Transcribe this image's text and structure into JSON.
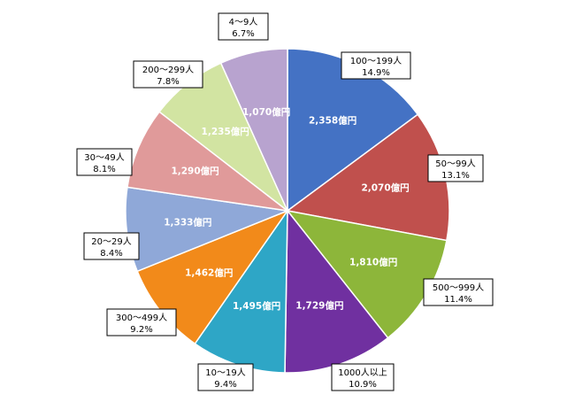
{
  "chart_data": {
    "type": "pie",
    "unit": "億円",
    "slices": [
      {
        "category": "100～199人",
        "value": 2358,
        "value_label": "2,358億円",
        "percent": "14.9%",
        "color": "#4472C4"
      },
      {
        "category": "50～99人",
        "value": 2070,
        "value_label": "2,070億円",
        "percent": "13.1%",
        "color": "#C0504D"
      },
      {
        "category": "500～999人",
        "value": 1810,
        "value_label": "1,810億円",
        "percent": "11.4%",
        "color": "#8DB63A"
      },
      {
        "category": "1000人以上",
        "value": 1729,
        "value_label": "1,729億円",
        "percent": "10.9%",
        "color": "#7030A0"
      },
      {
        "category": "10～19人",
        "value": 1495,
        "value_label": "1,495億円",
        "percent": "9.4%",
        "color": "#2EA6C6"
      },
      {
        "category": "300～499人",
        "value": 1462,
        "value_label": "1,462億円",
        "percent": "9.2%",
        "color": "#F28A1A"
      },
      {
        "category": "20～29人",
        "value": 1333,
        "value_label": "1,333億円",
        "percent": "8.4%",
        "color": "#8FA8D8"
      },
      {
        "category": "30～49人",
        "value": 1290,
        "value_label": "1,290億円",
        "percent": "8.1%",
        "color": "#E09A9A"
      },
      {
        "category": "200～299人",
        "value": 1235,
        "value_label": "1,235億円",
        "percent": "7.8%",
        "color": "#D2E4A2"
      },
      {
        "category": "4～9人",
        "value": 1070,
        "value_label": "1,070億円",
        "percent": "6.7%",
        "color": "#B8A3CF"
      }
    ],
    "start": "12 o'clock",
    "direction": "clockwise",
    "legend": "none"
  }
}
